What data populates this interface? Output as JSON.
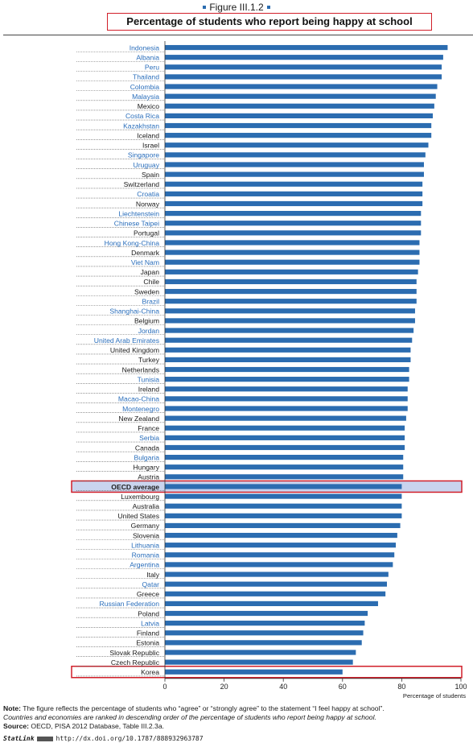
{
  "figure": {
    "label": "Figure III.1.2",
    "title": "Percentage of students who report being happy at school"
  },
  "colors": {
    "bar": "#2b6cb0",
    "oecd_bar": "#2b6cb0",
    "partner_label": "#2a6ebb",
    "oecd_label": "#1a1a1a",
    "highlight_fill": "#c9d4ee",
    "highlight_border": "#d11f2a"
  },
  "chart_data": {
    "type": "bar",
    "orientation": "horizontal",
    "xlabel": "Percentage of students",
    "xlim": [
      0,
      100
    ],
    "xticks": [
      0,
      20,
      40,
      60,
      80,
      100
    ],
    "grid": false,
    "highlighted": [
      "OECD average",
      "Korea"
    ],
    "categories": [
      {
        "name": "Indonesia",
        "value": 95.5,
        "group": "partner"
      },
      {
        "name": "Albania",
        "value": 94,
        "group": "partner"
      },
      {
        "name": "Peru",
        "value": 93.5,
        "group": "partner"
      },
      {
        "name": "Thailand",
        "value": 93.5,
        "group": "partner"
      },
      {
        "name": "Colombia",
        "value": 92,
        "group": "partner"
      },
      {
        "name": "Malaysia",
        "value": 91.5,
        "group": "partner"
      },
      {
        "name": "Mexico",
        "value": 91,
        "group": "oecd"
      },
      {
        "name": "Costa Rica",
        "value": 90.5,
        "group": "partner"
      },
      {
        "name": "Kazakhstan",
        "value": 90,
        "group": "partner"
      },
      {
        "name": "Iceland",
        "value": 90,
        "group": "oecd"
      },
      {
        "name": "Israel",
        "value": 89,
        "group": "oecd"
      },
      {
        "name": "Singapore",
        "value": 88,
        "group": "partner"
      },
      {
        "name": "Uruguay",
        "value": 87.5,
        "group": "partner"
      },
      {
        "name": "Spain",
        "value": 87.5,
        "group": "oecd"
      },
      {
        "name": "Switzerland",
        "value": 87,
        "group": "oecd"
      },
      {
        "name": "Croatia",
        "value": 87,
        "group": "partner"
      },
      {
        "name": "Norway",
        "value": 87,
        "group": "oecd"
      },
      {
        "name": "Liechtenstein",
        "value": 86.5,
        "group": "partner"
      },
      {
        "name": "Chinese Taipei",
        "value": 86.5,
        "group": "partner"
      },
      {
        "name": "Portugal",
        "value": 86.5,
        "group": "oecd"
      },
      {
        "name": "Hong Kong-China",
        "value": 86,
        "group": "partner"
      },
      {
        "name": "Denmark",
        "value": 86,
        "group": "oecd"
      },
      {
        "name": "Viet Nam",
        "value": 86,
        "group": "partner"
      },
      {
        "name": "Japan",
        "value": 85.5,
        "group": "oecd"
      },
      {
        "name": "Chile",
        "value": 85,
        "group": "oecd"
      },
      {
        "name": "Sweden",
        "value": 85,
        "group": "oecd"
      },
      {
        "name": "Brazil",
        "value": 85,
        "group": "partner"
      },
      {
        "name": "Shanghai-China",
        "value": 84.5,
        "group": "partner"
      },
      {
        "name": "Belgium",
        "value": 84.5,
        "group": "oecd"
      },
      {
        "name": "Jordan",
        "value": 84,
        "group": "partner"
      },
      {
        "name": "United Arab Emirates",
        "value": 83.5,
        "group": "partner"
      },
      {
        "name": "United Kingdom",
        "value": 83,
        "group": "oecd"
      },
      {
        "name": "Turkey",
        "value": 83,
        "group": "oecd"
      },
      {
        "name": "Netherlands",
        "value": 82.5,
        "group": "oecd"
      },
      {
        "name": "Tunisia",
        "value": 82.5,
        "group": "partner"
      },
      {
        "name": "Ireland",
        "value": 82,
        "group": "oecd"
      },
      {
        "name": "Macao-China",
        "value": 82,
        "group": "partner"
      },
      {
        "name": "Montenegro",
        "value": 82,
        "group": "partner"
      },
      {
        "name": "New Zealand",
        "value": 81.5,
        "group": "oecd"
      },
      {
        "name": "France",
        "value": 81,
        "group": "oecd"
      },
      {
        "name": "Serbia",
        "value": 81,
        "group": "partner"
      },
      {
        "name": "Canada",
        "value": 81,
        "group": "oecd"
      },
      {
        "name": "Bulgaria",
        "value": 80.5,
        "group": "partner"
      },
      {
        "name": "Hungary",
        "value": 80.5,
        "group": "oecd"
      },
      {
        "name": "Austria",
        "value": 80.5,
        "group": "oecd"
      },
      {
        "name": "OECD average",
        "value": 80,
        "group": "average"
      },
      {
        "name": "Luxembourg",
        "value": 80,
        "group": "oecd"
      },
      {
        "name": "Australia",
        "value": 80,
        "group": "oecd"
      },
      {
        "name": "United States",
        "value": 80,
        "group": "oecd"
      },
      {
        "name": "Germany",
        "value": 79.5,
        "group": "oecd"
      },
      {
        "name": "Slovenia",
        "value": 78.5,
        "group": "oecd"
      },
      {
        "name": "Lithuania",
        "value": 78,
        "group": "partner"
      },
      {
        "name": "Romania",
        "value": 77.5,
        "group": "partner"
      },
      {
        "name": "Argentina",
        "value": 77,
        "group": "partner"
      },
      {
        "name": "Italy",
        "value": 75.5,
        "group": "oecd"
      },
      {
        "name": "Qatar",
        "value": 75,
        "group": "partner"
      },
      {
        "name": "Greece",
        "value": 74.5,
        "group": "oecd"
      },
      {
        "name": "Russian Federation",
        "value": 72,
        "group": "partner"
      },
      {
        "name": "Poland",
        "value": 68.5,
        "group": "oecd"
      },
      {
        "name": "Latvia",
        "value": 67.5,
        "group": "partner"
      },
      {
        "name": "Finland",
        "value": 67,
        "group": "oecd"
      },
      {
        "name": "Estonia",
        "value": 66.5,
        "group": "oecd"
      },
      {
        "name": "Slovak Republic",
        "value": 64.5,
        "group": "oecd"
      },
      {
        "name": "Czech Republic",
        "value": 63.5,
        "group": "oecd"
      },
      {
        "name": "Korea",
        "value": 60,
        "group": "oecd"
      }
    ]
  },
  "notes": {
    "note_label": "Note:",
    "note_text": "The figure reflects the percentage of students who “agree” or “strongly agree” to the statement “I feel happy at school”.",
    "order_text": "Countries and economies are ranked in descending order of the percentage of students who report being happy at school.",
    "source_label": "Source:",
    "source_text": "OECD, PISA 2012 Database, Table III.2.3a.",
    "statlink_label": "StatLink",
    "statlink_url": "http://dx.doi.org/10.1787/888932963787"
  }
}
